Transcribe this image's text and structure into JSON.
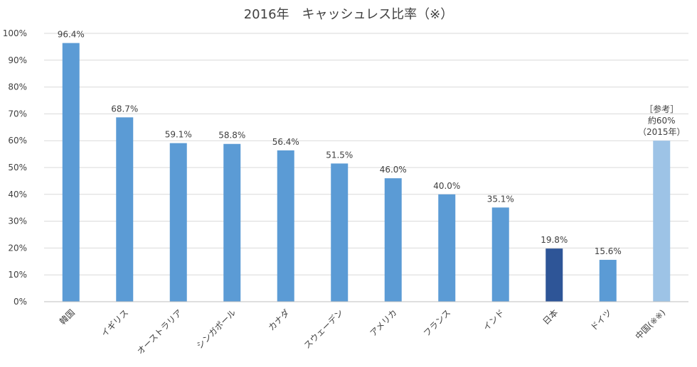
{
  "chart_data": {
    "type": "bar",
    "title": "2016年　キャッシュレス比率（※）",
    "xlabel": "",
    "ylabel": "",
    "ylim": [
      0,
      100
    ],
    "yticks": [
      "0%",
      "10%",
      "20%",
      "30%",
      "40%",
      "50%",
      "60%",
      "70%",
      "80%",
      "90%",
      "100%"
    ],
    "categories": [
      "韓国",
      "イギリス",
      "オーストラリア",
      "シンガポール",
      "カナダ",
      "スウェーデン",
      "アメリカ",
      "フランス",
      "インド",
      "日本",
      "ドイツ",
      "中国(※※)"
    ],
    "values": [
      96.4,
      68.7,
      59.1,
      58.8,
      56.4,
      51.5,
      46.0,
      40.0,
      35.1,
      19.8,
      15.6,
      60
    ],
    "labels": [
      [
        "96.4%"
      ],
      [
        "68.7%"
      ],
      [
        "59.1%"
      ],
      [
        "58.8%"
      ],
      [
        "56.4%"
      ],
      [
        "51.5%"
      ],
      [
        "46.0%"
      ],
      [
        "40.0%"
      ],
      [
        "35.1%"
      ],
      [
        "19.8%"
      ],
      [
        "15.6%"
      ],
      [
        "［参考］",
        "約60%",
        "（2015年）"
      ]
    ],
    "bar_colors": [
      "#5b9bd5",
      "#5b9bd5",
      "#5b9bd5",
      "#5b9bd5",
      "#5b9bd5",
      "#5b9bd5",
      "#5b9bd5",
      "#5b9bd5",
      "#5b9bd5",
      "#2e5597",
      "#5b9bd5",
      "#9dc3e6"
    ],
    "grid": true,
    "legend": "none"
  }
}
